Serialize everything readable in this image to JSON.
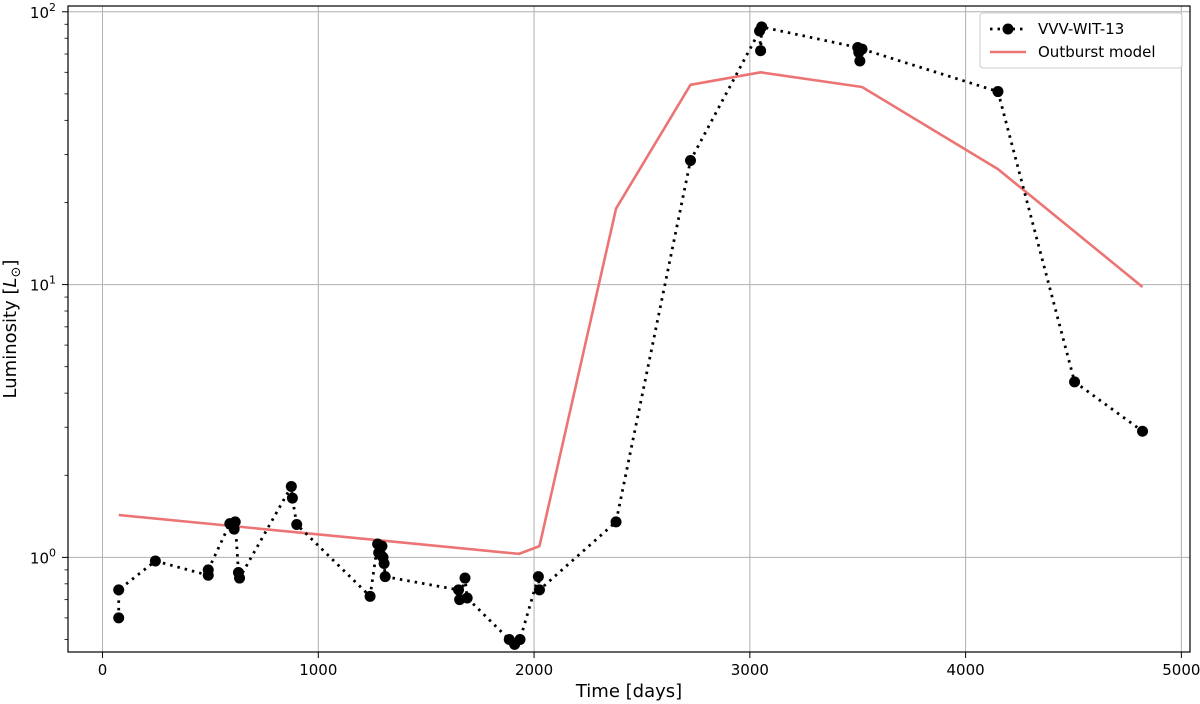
{
  "chart_data": {
    "type": "line",
    "xlabel": "Time [days]",
    "ylabel": "Luminosity [L⊙]",
    "ylabel_main": "Luminosity [",
    "ylabel_symbol": "L",
    "ylabel_sub": "⊙",
    "ylabel_close": "]",
    "xlim": [
      -160,
      5040
    ],
    "ylim": [
      0.45,
      105
    ],
    "yscale": "log",
    "xticks": [
      0,
      1000,
      2000,
      3000,
      4000,
      5000
    ],
    "xtick_labels": [
      "0",
      "1000",
      "2000",
      "3000",
      "4000",
      "5000"
    ],
    "yticks": [
      1,
      10,
      100
    ],
    "ytick_labels": [
      {
        "base": "10",
        "exp": "0"
      },
      {
        "base": "10",
        "exp": "1"
      },
      {
        "base": "10",
        "exp": "2"
      }
    ],
    "grid": true,
    "legend_position": "top-right",
    "series": [
      {
        "name": "VVV-WIT-13",
        "style": "dotted-with-markers",
        "color": "#000000",
        "points": [
          [
            75,
            0.6
          ],
          [
            75,
            0.76
          ],
          [
            245,
            0.97
          ],
          [
            490,
            0.86
          ],
          [
            490,
            0.9
          ],
          [
            590,
            1.33
          ],
          [
            610,
            1.27
          ],
          [
            615,
            1.35
          ],
          [
            630,
            0.88
          ],
          [
            635,
            0.84
          ],
          [
            875,
            1.82
          ],
          [
            880,
            1.65
          ],
          [
            900,
            1.32
          ],
          [
            1240,
            0.72
          ],
          [
            1275,
            1.12
          ],
          [
            1280,
            1.04
          ],
          [
            1290,
            1.02
          ],
          [
            1295,
            1.1
          ],
          [
            1300,
            1.0
          ],
          [
            1305,
            0.95
          ],
          [
            1310,
            0.85
          ],
          [
            1650,
            0.76
          ],
          [
            1655,
            0.7
          ],
          [
            1680,
            0.84
          ],
          [
            1690,
            0.71
          ],
          [
            1885,
            0.5
          ],
          [
            1910,
            0.48
          ],
          [
            1935,
            0.5
          ],
          [
            2020,
            0.85
          ],
          [
            2025,
            0.76
          ],
          [
            2380,
            1.35
          ],
          [
            2725,
            28.5
          ],
          [
            3045,
            85
          ],
          [
            3050,
            72
          ],
          [
            3055,
            88
          ],
          [
            3500,
            74
          ],
          [
            3505,
            71
          ],
          [
            3510,
            66
          ],
          [
            3520,
            73
          ],
          [
            4150,
            51
          ],
          [
            4505,
            4.4
          ],
          [
            4820,
            2.9
          ]
        ]
      },
      {
        "name": "Outburst model",
        "style": "solid",
        "color": "#ec7474",
        "points": [
          [
            75,
            1.43
          ],
          [
            1930,
            1.03
          ],
          [
            2025,
            1.1
          ],
          [
            2380,
            19
          ],
          [
            2725,
            54
          ],
          [
            3050,
            60
          ],
          [
            3520,
            53
          ],
          [
            4150,
            26.5
          ],
          [
            4820,
            9.8
          ]
        ]
      }
    ]
  }
}
